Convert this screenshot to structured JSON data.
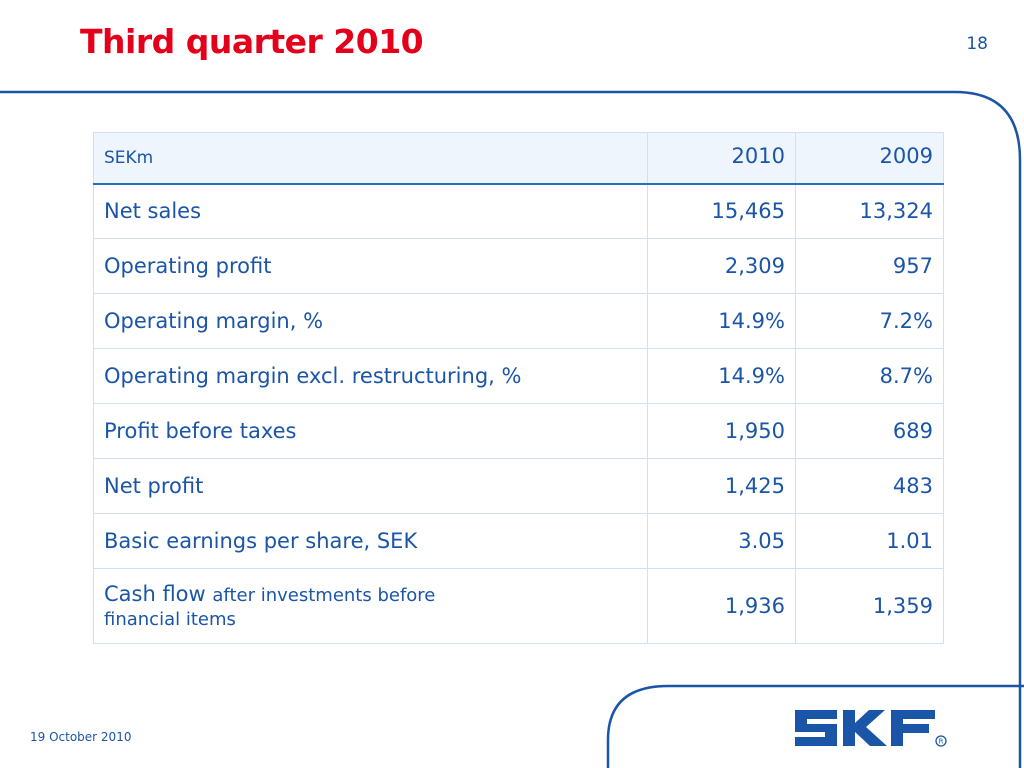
{
  "slide": {
    "title": "Third quarter 2010",
    "page_number": "18",
    "date": "19 October 2010"
  },
  "colors": {
    "title": "#e4001b",
    "text": "#1b55a8",
    "header_fill": "#eef5fd",
    "grid": "#cfe0f2",
    "logo": "#1b55a8"
  },
  "logo": {
    "text": "SKF",
    "mark": "®"
  },
  "table": {
    "header": {
      "unit": "SEKm",
      "col1": "2010",
      "col2": "2009"
    },
    "rows": [
      {
        "label": "Net sales",
        "v2010": "15,465",
        "v2009": "13,324"
      },
      {
        "label": "Operating profit",
        "v2010": "2,309",
        "v2009": "957"
      },
      {
        "label": "Operating margin, %",
        "v2010": "14.9%",
        "v2009": "7.2%"
      },
      {
        "label": "Operating margin excl. restructuring, %",
        "v2010": "14.9%",
        "v2009": "8.7%"
      },
      {
        "label": "Profit before taxes",
        "v2010": "1,950",
        "v2009": "689"
      },
      {
        "label": "Net profit",
        "v2010": "1,425",
        "v2009": "483"
      },
      {
        "label": "Basic earnings per share, SEK",
        "v2010": "3.05",
        "v2009": "1.01"
      }
    ],
    "cash_flow": {
      "label_main": "Cash flow",
      "label_sub1": "after investments before",
      "label_sub2": "financial items",
      "v2010": "1,936",
      "v2009": "1,359"
    }
  }
}
